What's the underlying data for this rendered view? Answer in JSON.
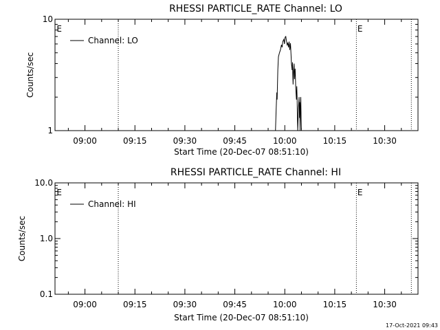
{
  "footer_timestamp": "17-Oct-2021 09:43",
  "chart_data": [
    {
      "type": "line",
      "title": "RHESSI PARTICLE_RATE Channel: LO",
      "xlabel": "Start Time (20-Dec-07 08:51:10)",
      "ylabel": "Counts/sec",
      "y_scale": "log",
      "ylim": [
        1,
        10
      ],
      "y_ticks": [
        "1",
        "10"
      ],
      "xlim_minutes": [
        -9,
        100
      ],
      "x_ticks": [
        {
          "label": "09:00",
          "minute": 0
        },
        {
          "label": "09:15",
          "minute": 15
        },
        {
          "label": "09:30",
          "minute": 30
        },
        {
          "label": "09:45",
          "minute": 45
        },
        {
          "label": "10:00",
          "minute": 60
        },
        {
          "label": "10:15",
          "minute": 75
        },
        {
          "label": "10:30",
          "minute": 90
        }
      ],
      "dotted_lines_minutes": [
        10,
        81.5,
        98
      ],
      "markers": [
        {
          "text": "E",
          "minute": -8.5
        },
        {
          "text": "E",
          "minute": 81.8
        }
      ],
      "legend": {
        "label": "Channel: LO",
        "placement": "top-left"
      },
      "grid": false,
      "series": [
        {
          "name": "Channel: LO",
          "points": [
            [
              57.2,
              1.0
            ],
            [
              57.4,
              1.5
            ],
            [
              57.6,
              2.2
            ],
            [
              57.7,
              1.9
            ],
            [
              57.9,
              3.5
            ],
            [
              58.1,
              4.6
            ],
            [
              58.4,
              5.0
            ],
            [
              58.7,
              5.3
            ],
            [
              59.0,
              5.9
            ],
            [
              59.2,
              5.6
            ],
            [
              59.4,
              6.3
            ],
            [
              59.7,
              6.6
            ],
            [
              59.9,
              6.0
            ],
            [
              60.1,
              6.9
            ],
            [
              60.3,
              7.0
            ],
            [
              60.5,
              6.4
            ],
            [
              60.7,
              5.9
            ],
            [
              60.9,
              6.1
            ],
            [
              61.1,
              5.6
            ],
            [
              61.3,
              6.3
            ],
            [
              61.5,
              5.3
            ],
            [
              61.7,
              6.1
            ],
            [
              61.9,
              4.7
            ],
            [
              62.0,
              4.0
            ],
            [
              62.2,
              3.5
            ],
            [
              62.3,
              4.1
            ],
            [
              62.5,
              2.6
            ],
            [
              62.6,
              3.3
            ],
            [
              62.8,
              4.0
            ],
            [
              62.9,
              2.9
            ],
            [
              63.1,
              3.6
            ],
            [
              63.3,
              2.4
            ],
            [
              63.5,
              1.9
            ],
            [
              63.6,
              2.5
            ],
            [
              63.7,
              1.9
            ],
            [
              63.8,
              1.3
            ],
            [
              63.9,
              1.0
            ],
            [
              64.1,
              1.6
            ],
            [
              64.3,
              2.0
            ],
            [
              64.4,
              1.3
            ],
            [
              64.5,
              1.8
            ],
            [
              64.6,
              1.0
            ],
            [
              64.7,
              1.6
            ],
            [
              64.8,
              2.0
            ],
            [
              64.9,
              1.3
            ],
            [
              65.0,
              1.0
            ]
          ]
        }
      ]
    },
    {
      "type": "line",
      "title": "RHESSI PARTICLE_RATE Channel: HI",
      "xlabel": "Start Time (20-Dec-07 08:51:10)",
      "ylabel": "Counts/sec",
      "y_scale": "log",
      "ylim": [
        0.1,
        10
      ],
      "y_ticks": [
        "0.1",
        "1.0",
        "10.0"
      ],
      "xlim_minutes": [
        -9,
        100
      ],
      "x_ticks": [
        {
          "label": "09:00",
          "minute": 0
        },
        {
          "label": "09:15",
          "minute": 15
        },
        {
          "label": "09:30",
          "minute": 30
        },
        {
          "label": "09:45",
          "minute": 45
        },
        {
          "label": "10:00",
          "minute": 60
        },
        {
          "label": "10:15",
          "minute": 75
        },
        {
          "label": "10:30",
          "minute": 90
        }
      ],
      "dotted_lines_minutes": [
        10,
        81.5,
        98
      ],
      "markers": [
        {
          "text": "E",
          "minute": -8.5
        },
        {
          "text": "E",
          "minute": 81.8
        }
      ],
      "legend": {
        "label": "Channel: HI",
        "placement": "top-left"
      },
      "grid": false,
      "series": [
        {
          "name": "Channel: HI",
          "points": []
        }
      ]
    }
  ]
}
